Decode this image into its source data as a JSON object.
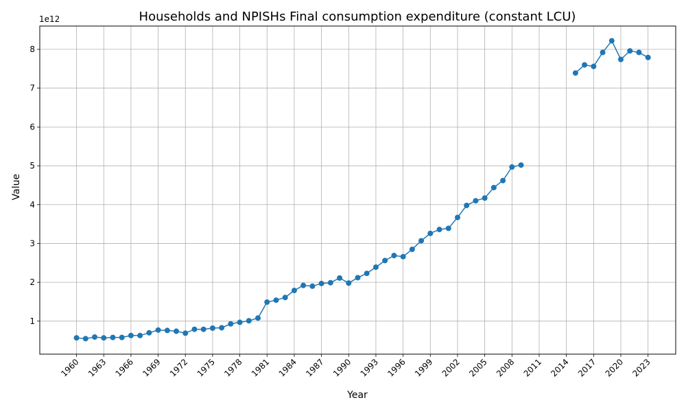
{
  "chart_data": {
    "type": "line",
    "title": "Households and NPISHs Final consumption expenditure (constant LCU)",
    "xlabel": "Year",
    "ylabel": "Value",
    "y_offset_label": "1e12",
    "xlim": [
      1955.95,
      2026.05
    ],
    "ylim": [
      0.15,
      8.6
    ],
    "y_scale_note": "values in units of 1e12",
    "x_ticks": [
      "1960",
      "1963",
      "1966",
      "1969",
      "1972",
      "1975",
      "1978",
      "1981",
      "1984",
      "1987",
      "1990",
      "1993",
      "1996",
      "1999",
      "2002",
      "2005",
      "2008",
      "2011",
      "2014",
      "2017",
      "2020",
      "2023"
    ],
    "y_ticks": [
      "1",
      "2",
      "3",
      "4",
      "5",
      "6",
      "7",
      "8"
    ],
    "grid": true,
    "color": "#1f77b4",
    "marker": "circle",
    "series": [
      {
        "points": [
          [
            1960,
            0.57
          ],
          [
            1961,
            0.55
          ],
          [
            1962,
            0.59
          ],
          [
            1963,
            0.57
          ],
          [
            1964,
            0.58
          ],
          [
            1965,
            0.58
          ],
          [
            1966,
            0.63
          ],
          [
            1967,
            0.63
          ],
          [
            1968,
            0.7
          ],
          [
            1969,
            0.77
          ],
          [
            1970,
            0.76
          ],
          [
            1971,
            0.74
          ],
          [
            1972,
            0.69
          ],
          [
            1973,
            0.79
          ],
          [
            1974,
            0.79
          ],
          [
            1975,
            0.82
          ],
          [
            1976,
            0.83
          ],
          [
            1977,
            0.93
          ],
          [
            1978,
            0.97
          ],
          [
            1979,
            1.01
          ],
          [
            1980,
            1.08
          ],
          [
            1981,
            1.49
          ],
          [
            1982,
            1.54
          ],
          [
            1983,
            1.61
          ],
          [
            1984,
            1.79
          ],
          [
            1985,
            1.92
          ],
          [
            1986,
            1.9
          ],
          [
            1987,
            1.97
          ],
          [
            1988,
            1.99
          ],
          [
            1989,
            2.11
          ],
          [
            1990,
            1.98
          ],
          [
            1991,
            2.12
          ],
          [
            1992,
            2.23
          ],
          [
            1993,
            2.39
          ],
          [
            1994,
            2.56
          ],
          [
            1995,
            2.69
          ],
          [
            1996,
            2.66
          ],
          [
            1997,
            2.85
          ],
          [
            1998,
            3.07
          ],
          [
            1999,
            3.26
          ],
          [
            2000,
            3.36
          ],
          [
            2001,
            3.39
          ],
          [
            2002,
            3.67
          ],
          [
            2003,
            3.98
          ],
          [
            2004,
            4.1
          ],
          [
            2005,
            4.17
          ],
          [
            2006,
            4.44
          ],
          [
            2007,
            4.62
          ],
          [
            2008,
            4.97
          ],
          [
            2009,
            5.02
          ]
        ]
      },
      {
        "points": [
          [
            2015,
            7.39
          ],
          [
            2016,
            7.6
          ],
          [
            2017,
            7.56
          ],
          [
            2018,
            7.92
          ],
          [
            2019,
            8.22
          ],
          [
            2020,
            7.74
          ],
          [
            2021,
            7.96
          ],
          [
            2022,
            7.92
          ],
          [
            2023,
            7.79
          ]
        ]
      }
    ]
  }
}
